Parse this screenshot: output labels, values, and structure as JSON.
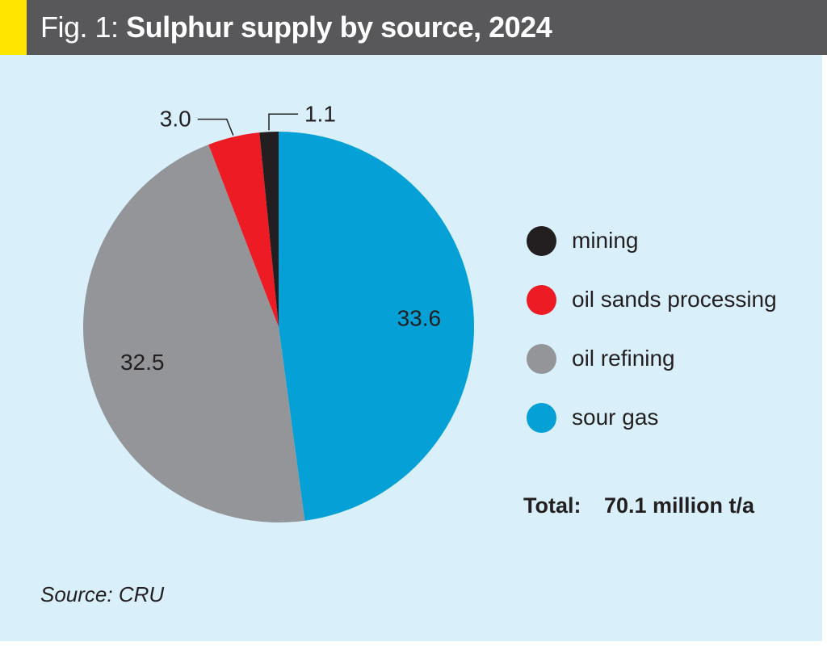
{
  "header": {
    "fig_label": "Fig. 1:",
    "title": "Sulphur supply by source, 2024"
  },
  "chart_data": {
    "type": "pie",
    "title": "Sulphur supply by source, 2024",
    "slices": [
      {
        "label": "sour gas",
        "value": 33.6,
        "color": "#05a0d6"
      },
      {
        "label": "oil refining",
        "value": 32.5,
        "color": "#939598"
      },
      {
        "label": "oil sands processing",
        "value": 3.0,
        "color": "#ed1c24"
      },
      {
        "label": "mining",
        "value": 1.1,
        "color": "#231f20"
      }
    ],
    "data_labels": [
      "33.6",
      "32.5",
      "3.0",
      "1.1"
    ],
    "legend_order": [
      "mining",
      "oil sands processing",
      "oil refining",
      "sour gas"
    ],
    "legend_placement": "right",
    "total_label": "Total:",
    "total_value": "70.1 million t/a",
    "source": "Source: CRU"
  },
  "colors": {
    "header_background": "#58585a",
    "header_accent": "#ffe600",
    "panel_background": "#d9f0fa"
  }
}
